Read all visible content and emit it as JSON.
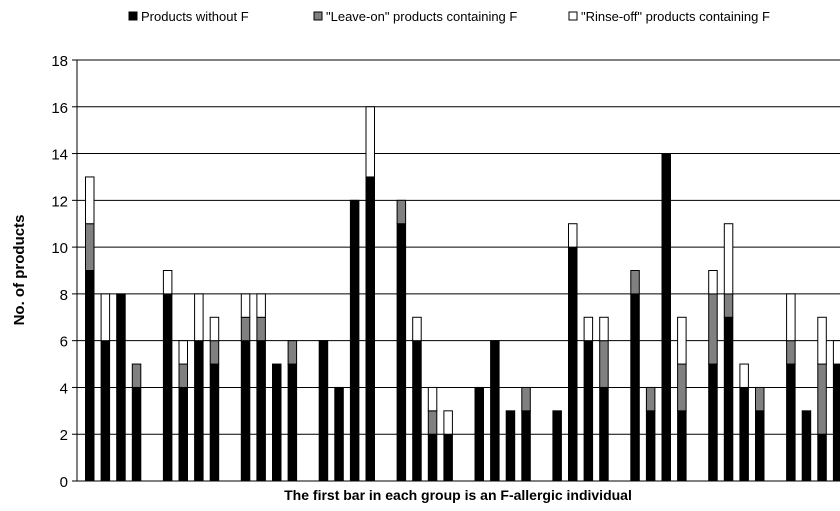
{
  "chart_data": {
    "type": "bar",
    "stacked": true,
    "xlabel": "The first bar in each group is an F-allergic individual",
    "ylabel": "No. of products",
    "ylim": [
      0,
      18
    ],
    "yticks": [
      0,
      2,
      4,
      6,
      8,
      10,
      12,
      14,
      16,
      18
    ],
    "grid": true,
    "legend_position": "top",
    "colors": {
      "without_f": "#000000",
      "leave_on": "#808080",
      "rinse_off": "#ffffff"
    },
    "series": [
      {
        "name": "Products without F",
        "key": "without_f"
      },
      {
        "name": "\"Leave-on\" products containing F",
        "key": "leave_on"
      },
      {
        "name": "\"Rinse-off\" products containing F",
        "key": "rinse_off"
      }
    ],
    "groups": [
      {
        "bars": [
          {
            "without_f": 9,
            "leave_on": 2,
            "rinse_off": 2
          },
          {
            "without_f": 6,
            "leave_on": 0,
            "rinse_off": 2
          },
          {
            "without_f": 8,
            "leave_on": 0,
            "rinse_off": 0
          },
          {
            "without_f": 4,
            "leave_on": 1,
            "rinse_off": 0
          }
        ]
      },
      {
        "bars": [
          {
            "without_f": 8,
            "leave_on": 0,
            "rinse_off": 1
          },
          {
            "without_f": 4,
            "leave_on": 1,
            "rinse_off": 1
          },
          {
            "without_f": 6,
            "leave_on": 0,
            "rinse_off": 2
          },
          {
            "without_f": 5,
            "leave_on": 1,
            "rinse_off": 1
          }
        ]
      },
      {
        "bars": [
          {
            "without_f": 6,
            "leave_on": 1,
            "rinse_off": 1
          },
          {
            "without_f": 6,
            "leave_on": 1,
            "rinse_off": 1
          },
          {
            "without_f": 5,
            "leave_on": 0,
            "rinse_off": 0
          },
          {
            "without_f": 5,
            "leave_on": 1,
            "rinse_off": 0
          }
        ]
      },
      {
        "bars": [
          {
            "without_f": 6,
            "leave_on": 0,
            "rinse_off": 0
          },
          {
            "without_f": 4,
            "leave_on": 0,
            "rinse_off": 0
          },
          {
            "without_f": 12,
            "leave_on": 0,
            "rinse_off": 0
          },
          {
            "without_f": 13,
            "leave_on": 0,
            "rinse_off": 3
          }
        ]
      },
      {
        "bars": [
          {
            "without_f": 11,
            "leave_on": 1,
            "rinse_off": 0
          },
          {
            "without_f": 6,
            "leave_on": 0,
            "rinse_off": 1
          },
          {
            "without_f": 2,
            "leave_on": 1,
            "rinse_off": 1
          },
          {
            "without_f": 2,
            "leave_on": 0,
            "rinse_off": 1
          }
        ]
      },
      {
        "bars": [
          {
            "without_f": 4,
            "leave_on": 0,
            "rinse_off": 0
          },
          {
            "without_f": 6,
            "leave_on": 0,
            "rinse_off": 0
          },
          {
            "without_f": 3,
            "leave_on": 0,
            "rinse_off": 0
          },
          {
            "without_f": 3,
            "leave_on": 1,
            "rinse_off": 0
          }
        ]
      },
      {
        "bars": [
          {
            "without_f": 3,
            "leave_on": 0,
            "rinse_off": 0
          },
          {
            "without_f": 10,
            "leave_on": 0,
            "rinse_off": 1
          },
          {
            "without_f": 6,
            "leave_on": 0,
            "rinse_off": 1
          },
          {
            "without_f": 4,
            "leave_on": 2,
            "rinse_off": 1
          }
        ]
      },
      {
        "bars": [
          {
            "without_f": 8,
            "leave_on": 1,
            "rinse_off": 0
          },
          {
            "without_f": 3,
            "leave_on": 1,
            "rinse_off": 0
          },
          {
            "without_f": 14,
            "leave_on": 0,
            "rinse_off": 0
          },
          {
            "without_f": 3,
            "leave_on": 2,
            "rinse_off": 2
          }
        ]
      },
      {
        "bars": [
          {
            "without_f": 5,
            "leave_on": 3,
            "rinse_off": 1
          },
          {
            "without_f": 7,
            "leave_on": 1,
            "rinse_off": 3
          },
          {
            "without_f": 4,
            "leave_on": 0,
            "rinse_off": 1
          },
          {
            "without_f": 3,
            "leave_on": 1,
            "rinse_off": 0
          }
        ]
      },
      {
        "bars": [
          {
            "without_f": 5,
            "leave_on": 1,
            "rinse_off": 2
          },
          {
            "without_f": 3,
            "leave_on": 0,
            "rinse_off": 0
          },
          {
            "without_f": 2,
            "leave_on": 3,
            "rinse_off": 2
          },
          {
            "without_f": 5,
            "leave_on": 0,
            "rinse_off": 1
          }
        ]
      }
    ]
  }
}
